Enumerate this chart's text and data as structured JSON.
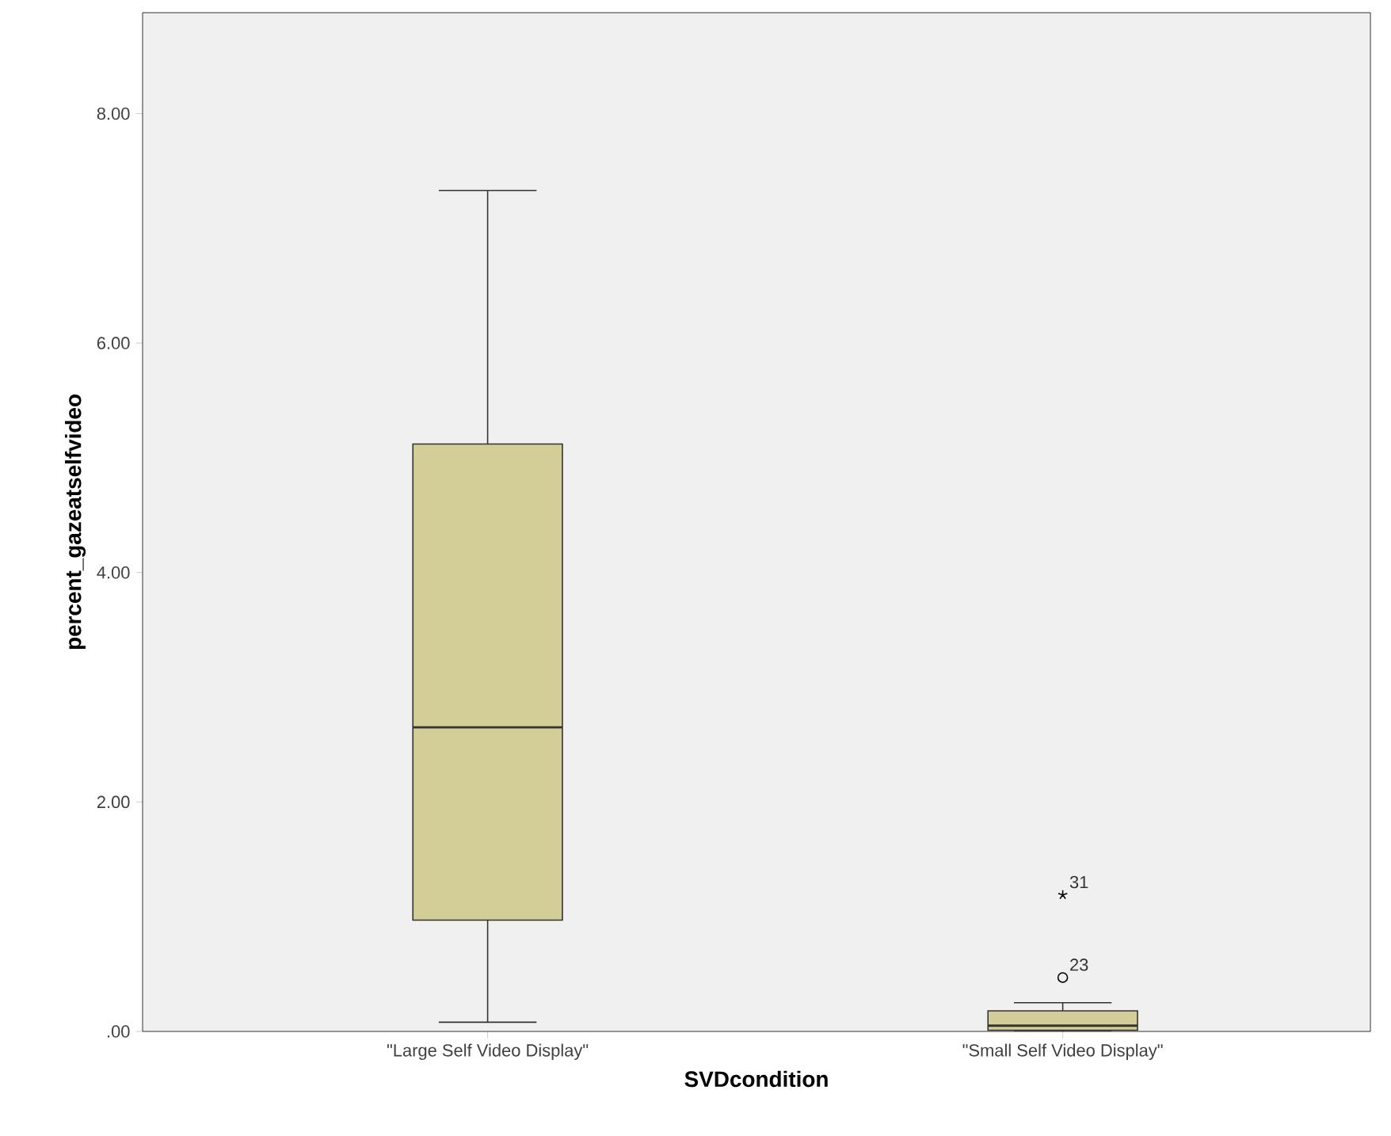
{
  "chart_data": {
    "type": "box",
    "xlabel": "SVDcondition",
    "ylabel": "percent_gazeatselfvideo",
    "categories": [
      "\"Large Self Video Display\"",
      "\"Small Self Video Display\""
    ],
    "color": "#d3ce97",
    "boxes": [
      {
        "low": 0.08,
        "q1": 0.97,
        "median": 2.65,
        "q3": 5.12,
        "high": 7.33
      },
      {
        "low": 0.0,
        "q1": 0.01,
        "median": 0.05,
        "q3": 0.18,
        "high": 0.25,
        "outliers": [
          0.47,
          1.19
        ]
      }
    ],
    "ylim": [
      0,
      8.88
    ],
    "yticks": [
      {
        "value": 0,
        "label": ".00"
      },
      {
        "value": 2,
        "label": "2.00"
      },
      {
        "value": 4,
        "label": "4.00"
      },
      {
        "value": 6,
        "label": "6.00"
      },
      {
        "value": 8,
        "label": "8.00"
      }
    ],
    "annotations": [
      "23",
      "31"
    ]
  }
}
